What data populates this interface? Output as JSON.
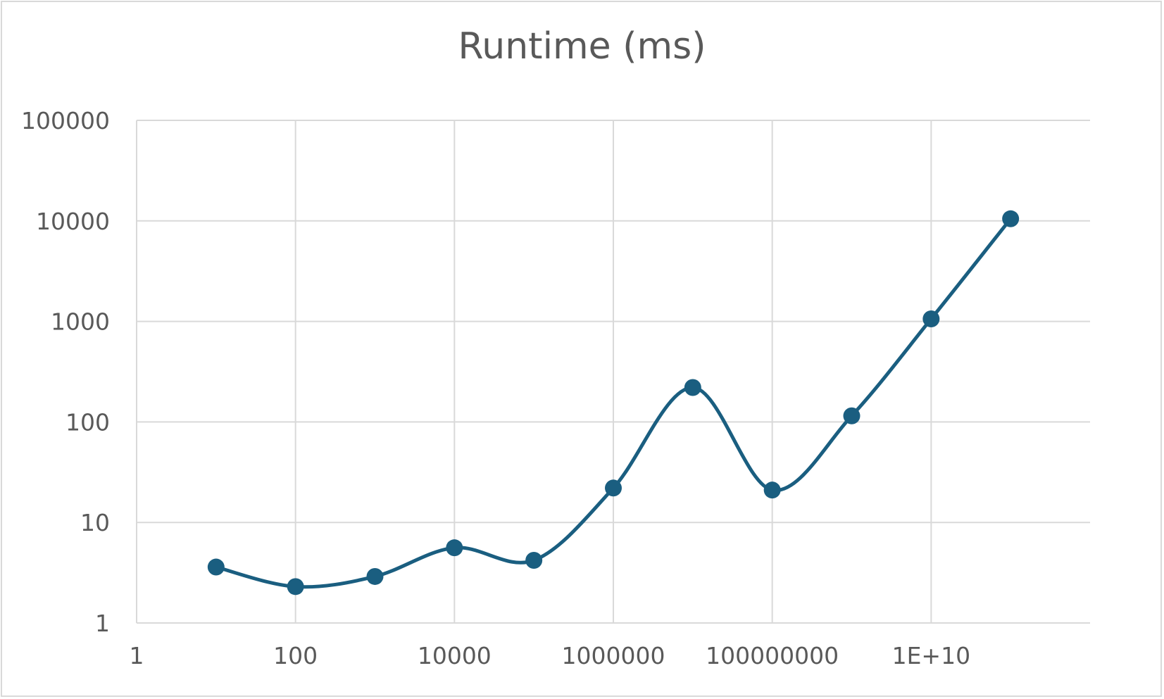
{
  "chart_data": {
    "type": "line",
    "title": "Runtime (ms)",
    "xlabel": "",
    "ylabel": "",
    "x_scale": "log10",
    "y_scale": "log10",
    "xlim": [
      1,
      1000000000000
    ],
    "ylim": [
      1,
      100000
    ],
    "x_tick_labels": [
      "1",
      "100",
      "10000",
      "1000000",
      "100000000",
      "1E+10"
    ],
    "y_tick_labels": [
      "1",
      "10",
      "100",
      "1000",
      "10000",
      "100000"
    ],
    "grid": true,
    "legend": "none",
    "smooth": true,
    "series": [
      {
        "x": [
          10,
          100,
          1000,
          10000,
          100000,
          1000000,
          10000000,
          100000000,
          1000000000,
          10000000000,
          100000000000
        ],
        "y": [
          3.6,
          2.3,
          2.9,
          5.6,
          4.2,
          22,
          220,
          21,
          115,
          1060,
          10500
        ]
      }
    ],
    "colors": {
      "series": "#1a5e80",
      "grid": "#d9d9d9",
      "text": "#595959"
    }
  }
}
